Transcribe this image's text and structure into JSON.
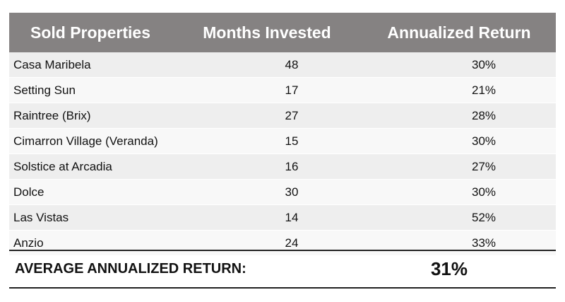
{
  "table": {
    "headers": {
      "property": "Sold Properties",
      "months": "Months Invested",
      "return": "Annualized Return"
    },
    "rows": [
      {
        "property": "Casa Maribela",
        "months": "48",
        "return": "30%"
      },
      {
        "property": "Setting Sun",
        "months": "17",
        "return": "21%"
      },
      {
        "property": "Raintree (Brix)",
        "months": "27",
        "return": "28%"
      },
      {
        "property": "Cimarron Village (Veranda)",
        "months": "15",
        "return": "30%"
      },
      {
        "property": "Solstice at Arcadia",
        "months": "16",
        "return": "27%"
      },
      {
        "property": "Dolce",
        "months": "30",
        "return": "30%"
      },
      {
        "property": "Las Vistas",
        "months": "14",
        "return": "52%"
      },
      {
        "property": "Anzio",
        "months": "24",
        "return": "33%"
      }
    ]
  },
  "summary": {
    "label": "AVERAGE ANNUALIZED RETURN:",
    "value": "31%"
  },
  "colors": {
    "header_bg": "#858282",
    "row_odd": "#eeeeee",
    "row_even": "#f8f8f8"
  }
}
